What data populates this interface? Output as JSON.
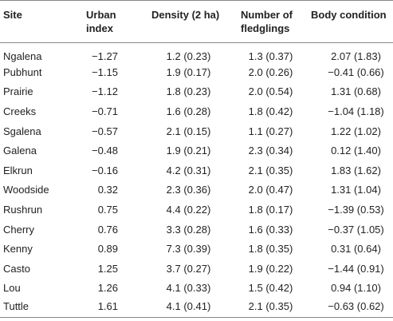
{
  "table": {
    "headers": [
      "Site",
      "Urban index",
      "Density (2 ha)",
      "Number of fledglings",
      "Body condition"
    ],
    "rows": [
      [
        "Ngalena",
        "−1.27",
        "1.2 (0.23)",
        "1.3 (0.37)",
        "2.07 (1.83)"
      ],
      [
        "Pubhunt",
        "−1.15",
        "1.9 (0.17)",
        "2.0 (0.26)",
        "−0.41 (0.66)"
      ],
      [
        "Prairie",
        "−1.12",
        "1.8 (0.23)",
        "2.0 (0.54)",
        "1.31 (0.68)"
      ],
      [
        "Creeks",
        "−0.71",
        "1.6 (0.28)",
        "1.8 (0.42)",
        "−1.04 (1.18)"
      ],
      [
        "Sgalena",
        "−0.57",
        "2.1 (0.15)",
        "1.1 (0.27)",
        "1.22 (1.02)"
      ],
      [
        "Galena",
        "−0.48",
        "1.9 (0.21)",
        "2.3 (0.34)",
        "0.12 (1.40)"
      ],
      [
        "Elkrun",
        "−0.16",
        "4.2 (0.31)",
        "2.1 (0.35)",
        "1.83 (1.62)"
      ],
      [
        "Woodside",
        "0.32",
        "2.3 (0.36)",
        "2.0 (0.47)",
        "1.31 (1.04)"
      ],
      [
        "Rushrun",
        "0.75",
        "4.4 (0.22)",
        "1.8 (0.17)",
        "−1.39 (0.53)"
      ],
      [
        "Cherry",
        "0.76",
        "3.3 (0.28)",
        "1.6 (0.33)",
        "−0.37 (1.05)"
      ],
      [
        "Kenny",
        "0.89",
        "7.3 (0.39)",
        "1.8 (0.35)",
        "0.31 (0.64)"
      ],
      [
        "Casto",
        "1.25",
        "3.7 (0.27)",
        "1.9 (0.22)",
        "−1.44 (0.91)"
      ],
      [
        "Lou",
        "1.26",
        "4.1 (0.33)",
        "1.5 (0.42)",
        "0.94 (1.10)"
      ],
      [
        "Tuttle",
        "1.61",
        "4.1 (0.41)",
        "2.1 (0.35)",
        "−0.63 (0.62)"
      ]
    ]
  }
}
